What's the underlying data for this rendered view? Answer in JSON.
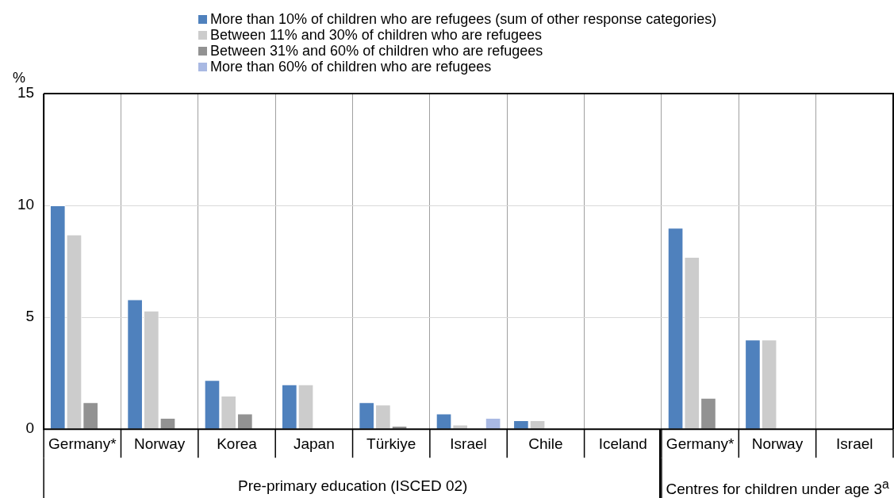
{
  "chart_data": {
    "type": "bar",
    "ylabel": "%",
    "categories": [
      "Germany*",
      "Norway",
      "Korea",
      "Japan",
      "Türkiye",
      "Israel",
      "Chile",
      "Iceland",
      "Germany*",
      "Norway",
      "Israel"
    ],
    "series": [
      {
        "name": "More than 10% of children who are refugees (sum of other response categories)",
        "color": "#4f81bd",
        "values": [
          10.0,
          5.8,
          2.2,
          2.0,
          1.2,
          0.7,
          0.4,
          null,
          9.0,
          4.0,
          null
        ]
      },
      {
        "name": "Between 11% and 30% of children who are refugees",
        "color": "#cccccc",
        "values": [
          8.7,
          5.3,
          1.5,
          2.0,
          1.1,
          0.2,
          0.4,
          null,
          7.7,
          4.0,
          null
        ]
      },
      {
        "name": "Between 31% and 60% of children who are refugees",
        "color": "#929292",
        "values": [
          1.2,
          0.5,
          0.7,
          null,
          0.15,
          null,
          null,
          null,
          1.4,
          null,
          null
        ]
      },
      {
        "name": "More than 60% of children who are refugees",
        "color": "#a9b9e3",
        "values": [
          null,
          null,
          null,
          null,
          null,
          0.5,
          null,
          null,
          null,
          null,
          null
        ]
      }
    ],
    "ylim": [
      0,
      15
    ],
    "yticks": [
      0,
      5,
      10,
      15
    ],
    "grid": true,
    "legend": "top",
    "annotations": [
      "Pre-primary education (ISCED 02)",
      "Centres for children under age 3$^{a}$"
    ]
  }
}
